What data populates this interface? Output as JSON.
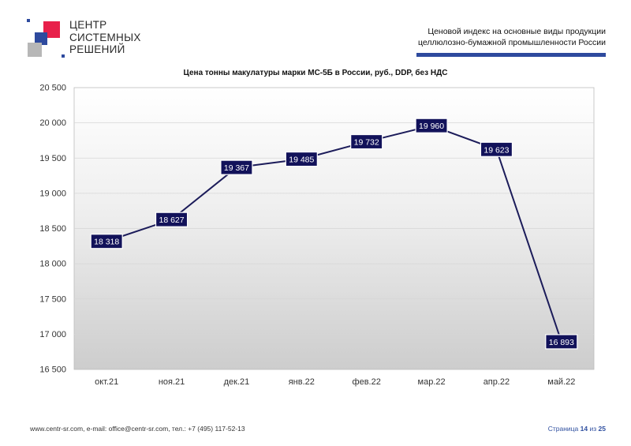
{
  "logo": {
    "lines": [
      "ЦЕНТР",
      "СИСТЕМНЫХ",
      "РЕШЕНИЙ"
    ],
    "colors": {
      "red": "#e8204a",
      "blue": "#2e4a9e",
      "gray": "#b7b7b7"
    }
  },
  "header": {
    "title_line1": "Ценовой индекс на основные виды продукции",
    "title_line2": "целлюлозно-бумажной промышленности России"
  },
  "chart_data": {
    "type": "line",
    "title": "Цена тонны макулатуры марки МС-5Б в России, руб., DDP, без НДС",
    "categories": [
      "окт.21",
      "ноя.21",
      "дек.21",
      "янв.22",
      "фев.22",
      "мар.22",
      "апр.22",
      "май.22"
    ],
    "values": [
      18318,
      18627,
      19367,
      19485,
      19732,
      19960,
      19623,
      16893
    ],
    "value_labels": [
      "18 318",
      "18 627",
      "19 367",
      "19 485",
      "19 732",
      "19 960",
      "19 623",
      "16 893"
    ],
    "ylim": [
      16500,
      20500
    ],
    "yticks": [
      16500,
      17000,
      17500,
      18000,
      18500,
      19000,
      19500,
      20000,
      20500
    ],
    "ytick_labels": [
      "16 500",
      "17 000",
      "17 500",
      "18 000",
      "18 500",
      "19 000",
      "19 500",
      "20 000",
      "20 500"
    ],
    "grid": true,
    "xlabel": "",
    "ylabel": "",
    "line_color": "#1c1c5a",
    "label_bg": "#12125a"
  },
  "footer": {
    "contacts": "www.centr-sr.com, e-mail: office@centr-sr.com, тел.: +7 (495) 117-52-13",
    "page_word": "Страница",
    "page_num": "14",
    "of_word": "из",
    "page_total": "25"
  }
}
